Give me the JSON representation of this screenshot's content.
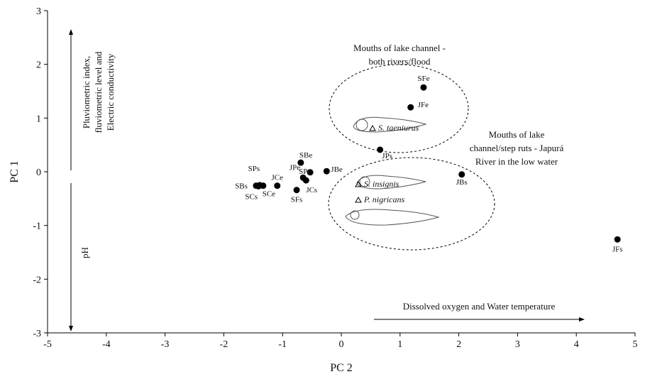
{
  "chart_data": {
    "type": "scatter",
    "x_label": "PC 2",
    "y_label": "PC 1",
    "xlim": [
      -5,
      5
    ],
    "ylim": [
      -3,
      3
    ],
    "xticks": [
      -5,
      -4,
      -3,
      -2,
      -1,
      0,
      1,
      2,
      3,
      4,
      5
    ],
    "yticks": [
      -3,
      -2,
      -1,
      0,
      1,
      2,
      3
    ],
    "color": "#000000",
    "points": [
      {
        "label": "SFe",
        "x": 1.4,
        "y": 1.57
      },
      {
        "label": "JFe",
        "x": 1.18,
        "y": 1.2
      },
      {
        "label": "JPs",
        "x": 0.66,
        "y": 0.41
      },
      {
        "label": "JBs",
        "x": 2.05,
        "y": -0.05
      },
      {
        "label": "JFs",
        "x": 4.7,
        "y": -1.26
      },
      {
        "label": "SBe",
        "x": -0.69,
        "y": 0.17
      },
      {
        "label": "JBe",
        "x": -0.25,
        "y": 0.01
      },
      {
        "label": "SPe",
        "x": -0.53,
        "y": -0.01
      },
      {
        "label": "JPe",
        "x": -0.65,
        "y": -0.11
      },
      {
        "label": "JCs",
        "x": -0.6,
        "y": -0.16
      },
      {
        "label": "SFs",
        "x": -0.76,
        "y": -0.34
      },
      {
        "label": "JCe",
        "x": -1.09,
        "y": -0.26
      },
      {
        "label": "SCe",
        "x": -1.33,
        "y": -0.26
      },
      {
        "label": "SPs",
        "x": -1.39,
        "y": -0.25
      },
      {
        "label": "SCs",
        "x": -1.41,
        "y": -0.27
      },
      {
        "label": "SBs",
        "x": -1.45,
        "y": -0.26
      }
    ],
    "annotations": {
      "top_group": [
        "Mouths of lake channel -",
        "both rivers/flood"
      ],
      "bottom_group": [
        "Mouths of lake",
        "channel/step ruts - Japurá",
        "River in the low water"
      ],
      "y_positive": [
        "Pluviometric index,",
        "fluviometric level and",
        "Electric conductivity"
      ],
      "y_negative": "pH",
      "x_positive": "Dissolved oxygen and Water temperature",
      "species": [
        "S. taeniurus",
        "S. insignis",
        "P. nigricans"
      ]
    }
  }
}
